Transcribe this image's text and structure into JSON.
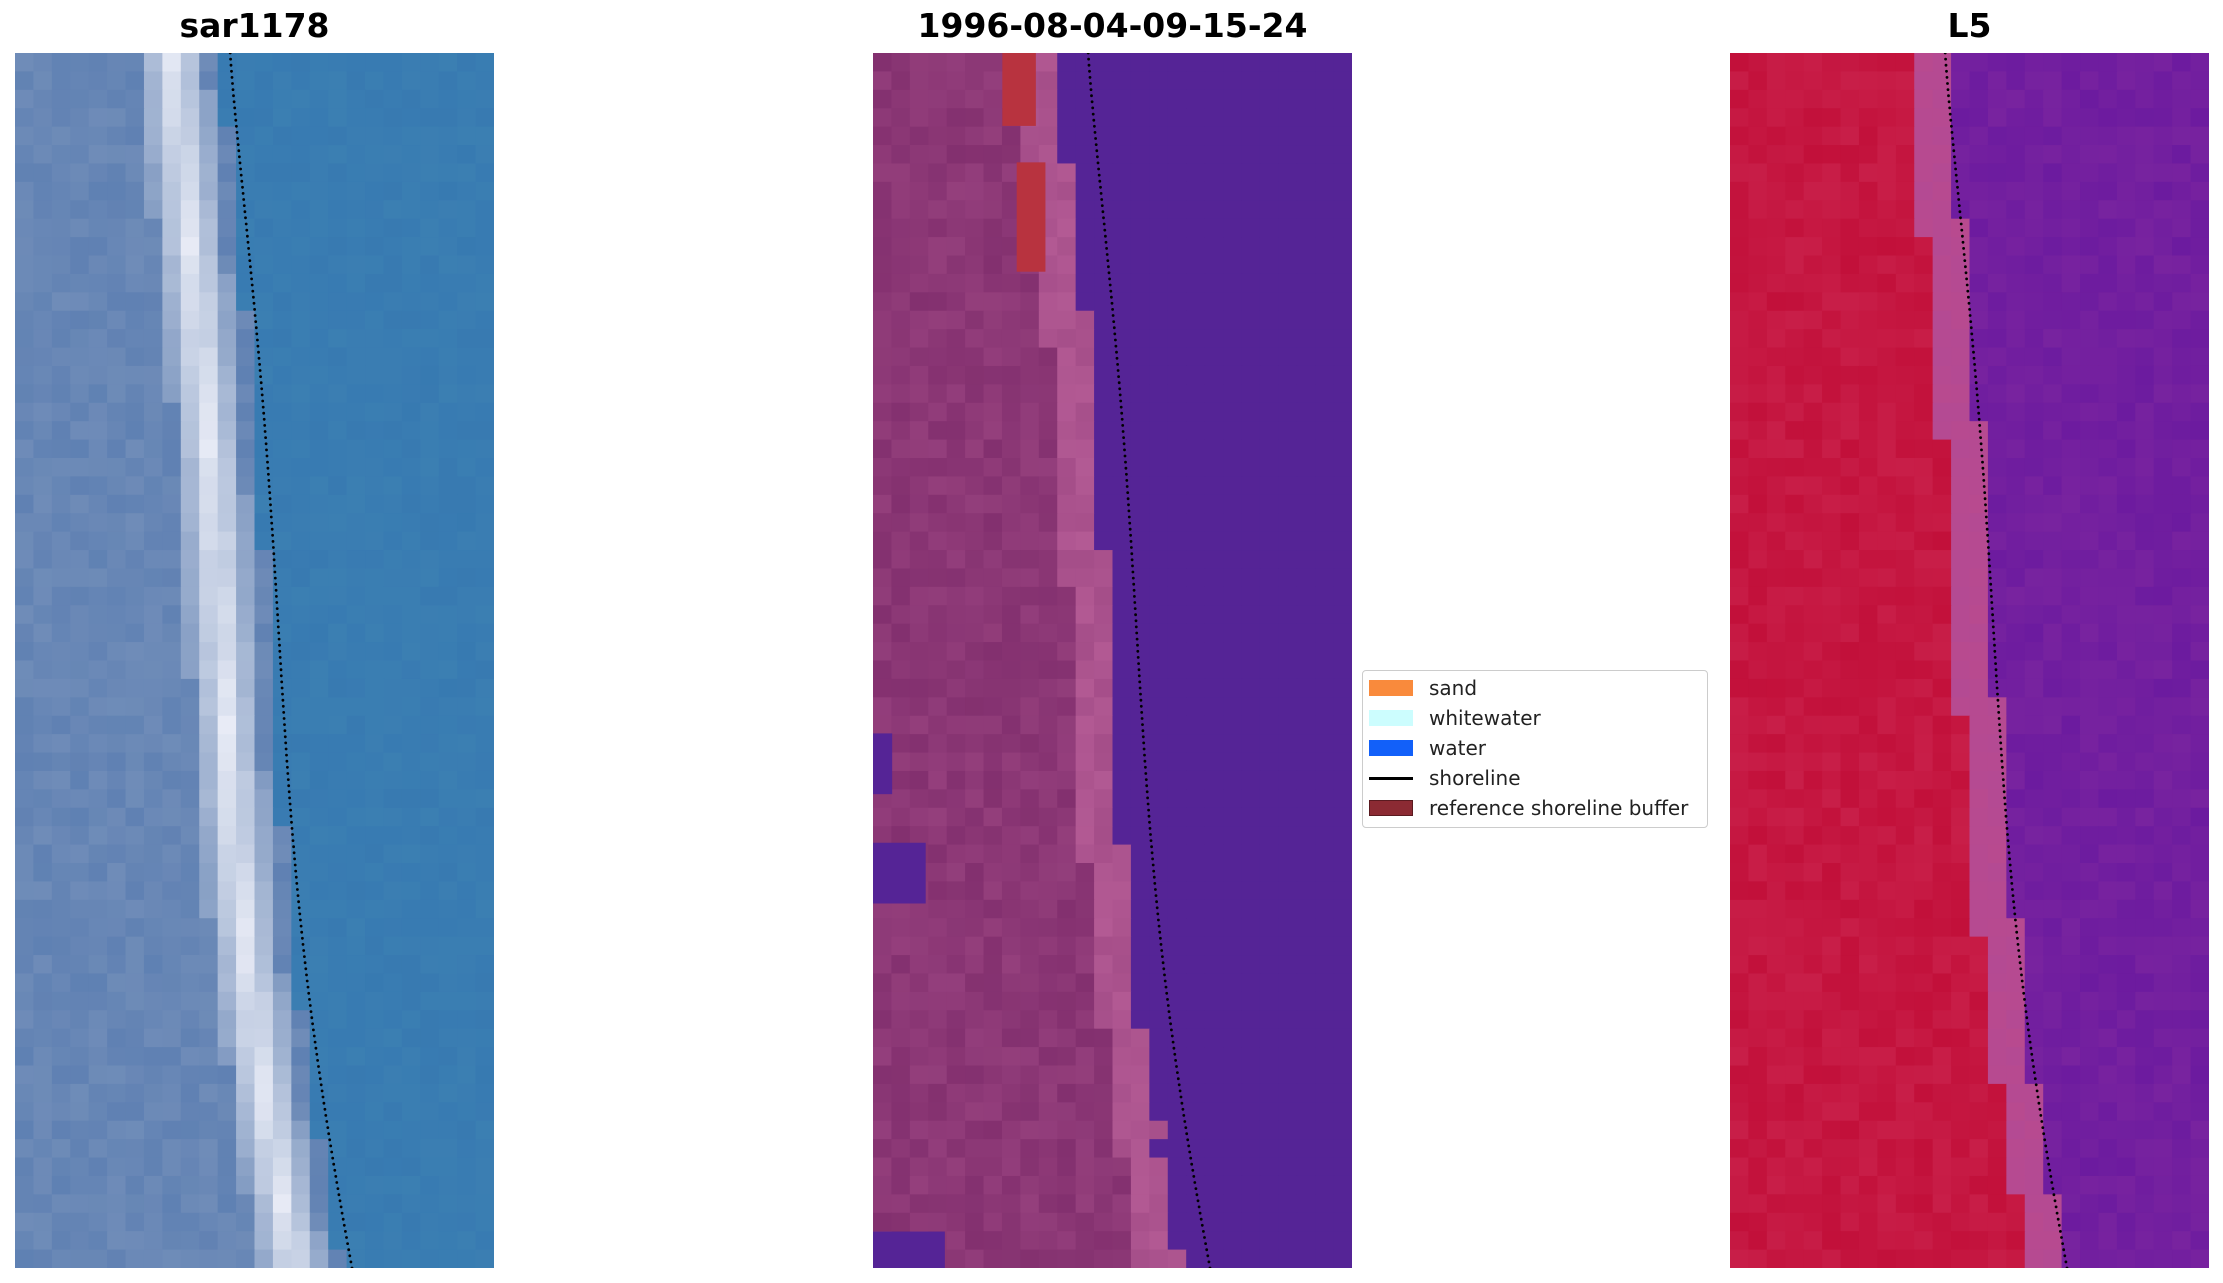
{
  "panels": [
    {
      "title": "sar1178",
      "kind": "rgb"
    },
    {
      "title": "1996-08-04-09-15-24",
      "kind": "classified"
    },
    {
      "title": "L5",
      "kind": "index"
    }
  ],
  "legend": {
    "items": [
      {
        "label": "sand",
        "color": "#f98a3c",
        "type": "patch"
      },
      {
        "label": "whitewater",
        "color": "#ccfdfe",
        "type": "patch"
      },
      {
        "label": "water",
        "color": "#1260f9",
        "type": "patch"
      },
      {
        "label": "shoreline",
        "color": "#000000",
        "type": "line"
      },
      {
        "label": "reference shoreline buffer",
        "color": "#8b2a33",
        "type": "patch"
      }
    ]
  },
  "colors": {
    "rgb_land": "#6f8cb8",
    "rgb_whitewater": "#e9ecf6",
    "rgb_water": "#3b7fb2",
    "class_land": "#83306f",
    "class_transition": "#b35a94",
    "class_water": "#552496",
    "class_buffer": "#b8333f",
    "index_land": "#c2103a",
    "index_transition": "#b84a8f",
    "index_water": "#78239f"
  }
}
